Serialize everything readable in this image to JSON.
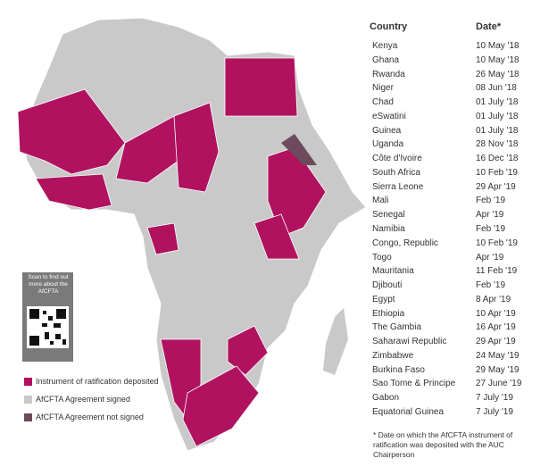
{
  "table": {
    "headers": [
      "Country",
      "Date*"
    ],
    "rows": [
      [
        "Kenya",
        "10 May '18"
      ],
      [
        "Ghana",
        "10 May '18"
      ],
      [
        "Rwanda",
        "26 May '18"
      ],
      [
        "Niger",
        "08 Jun '18"
      ],
      [
        "Chad",
        "01 July '18"
      ],
      [
        "eSwatini",
        "01 July '18"
      ],
      [
        "Guinea",
        "01 July '18"
      ],
      [
        "Uganda",
        "28 Nov '18"
      ],
      [
        "Côte d'Ivoire",
        "16 Dec '18"
      ],
      [
        "South Africa",
        "10 Feb '19"
      ],
      [
        "Sierra Leone",
        "29 Apr '19"
      ],
      [
        "Mali",
        "Feb '19"
      ],
      [
        "Senegal",
        "Apr '19"
      ],
      [
        "Namibia",
        "Feb '19"
      ],
      [
        "Congo, Republic",
        "10 Feb '19"
      ],
      [
        "Togo",
        "Apr '19"
      ],
      [
        "Mauritania",
        "11 Feb '19"
      ],
      [
        "Djibouti",
        "Feb '19"
      ],
      [
        "Egypt",
        "8 Apr '19"
      ],
      [
        "Ethiopia",
        "10 Apr '19"
      ],
      [
        "The Gambia",
        "16 Apr '19"
      ],
      [
        "Saharawi Republic",
        "29 Apr '19"
      ],
      [
        "Zimbabwe",
        "24 May '19"
      ],
      [
        "Burkina Faso",
        "29 May '19"
      ],
      [
        "Sao Tome & Principe",
        "27 June '19"
      ],
      [
        "Gabon",
        "7 July '19"
      ],
      [
        "Equatorial Guinea",
        "7 July '19"
      ]
    ]
  },
  "legend": [
    {
      "label": "Instrument of ratification deposited",
      "color": "#b0125f"
    },
    {
      "label": "AfCFTA Agreement signed",
      "color": "#c9c9c9"
    },
    {
      "label": "AfCFTA Agreement not signed",
      "color": "#6e4a5c"
    }
  ],
  "qr": {
    "text": "Scan to find out more about the AfCFTA"
  },
  "footnote": "* Date on which the AfCFTA instrument of ratification was deposited with the AUC Chairperson"
}
